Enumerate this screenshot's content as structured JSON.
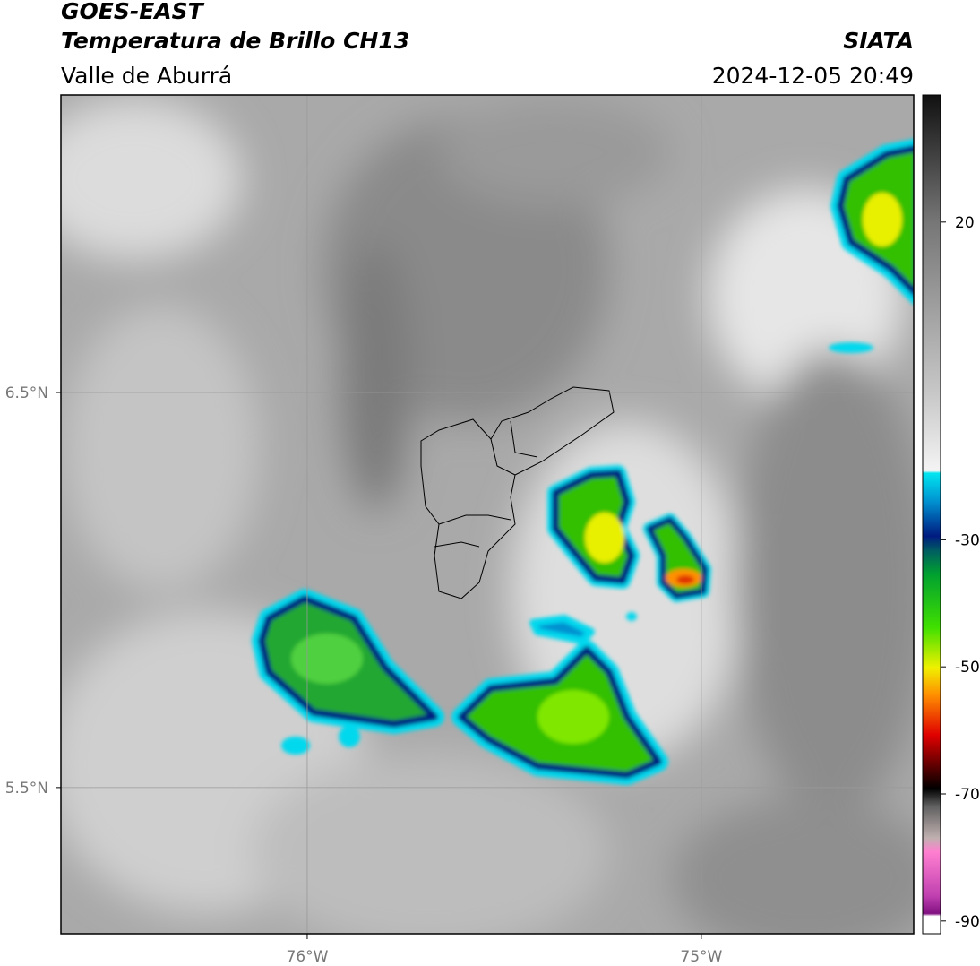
{
  "header": {
    "title": "GOES-EAST",
    "subtitle": "Temperatura de Brillo CH13",
    "region": "Valle de Aburrá",
    "source": "SIATA",
    "datetime": "2024-12-05 20:49"
  },
  "map": {
    "xlim": [
      -76.625,
      -74.461
    ],
    "ylim": [
      5.13,
      7.253
    ],
    "xticks": [
      {
        "value": -76,
        "label": "76°W"
      },
      {
        "value": -75,
        "label": "75°W"
      }
    ],
    "yticks": [
      {
        "value": 5.5,
        "label": "5.5°N"
      },
      {
        "value": 6.5,
        "label": "6.5°N"
      }
    ],
    "grid": true
  },
  "colorbar": {
    "lim": [
      -92,
      40
    ],
    "ticks": [
      -90,
      -70,
      -50,
      -30,
      20
    ]
  }
}
